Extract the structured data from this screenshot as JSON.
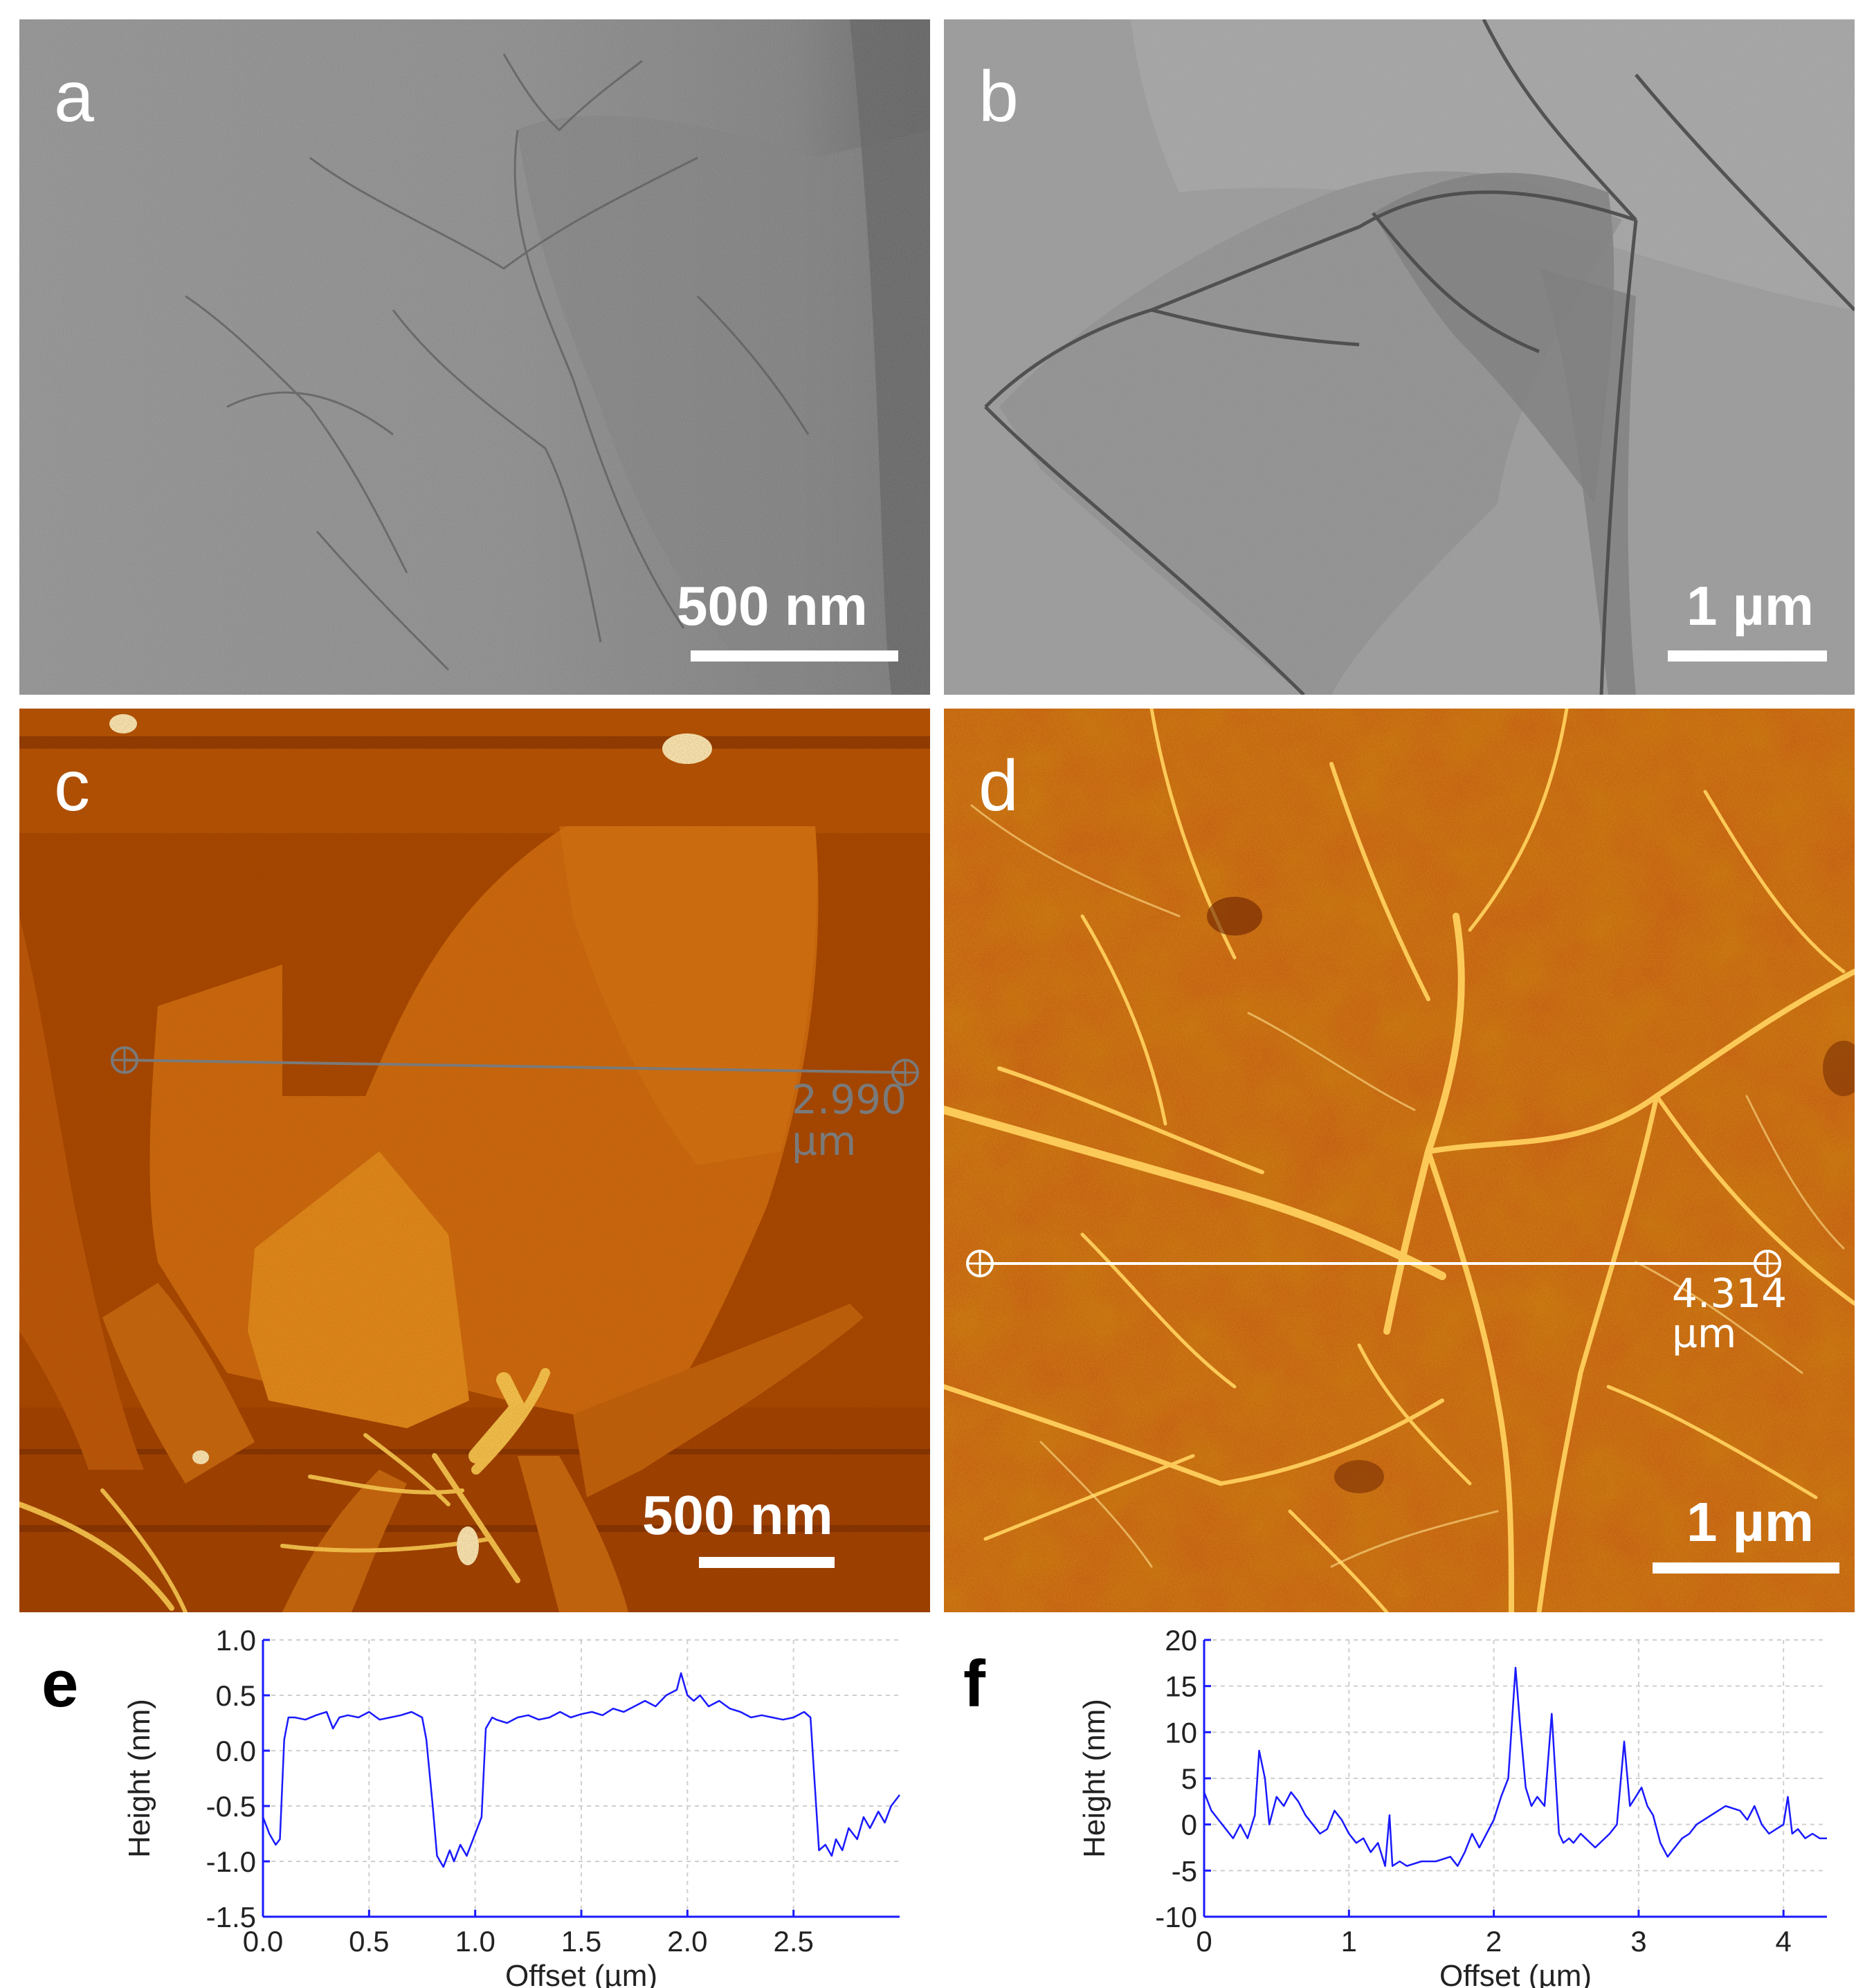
{
  "panels": {
    "a": {
      "letter": "a",
      "scale_label": "500 nm"
    },
    "b": {
      "letter": "b",
      "scale_label": "1 µm"
    },
    "c": {
      "letter": "c",
      "scale_label": "500 nm",
      "measure_value": "2.990",
      "measure_unit": "µm"
    },
    "d": {
      "letter": "d",
      "scale_label": "1 µm",
      "measure_value": "4.314 µm"
    },
    "e": {
      "letter": "e"
    },
    "f": {
      "letter": "f"
    }
  },
  "colors": {
    "afm_dark": "#8f3400",
    "afm_mid": "#c25a0c",
    "afm_light": "#f5a530",
    "tem_gray": "#8c8c8c",
    "profile_line": "#1a1aff"
  },
  "chart_data": [
    {
      "id": "e",
      "type": "line",
      "xlabel": "Offset (µm)",
      "ylabel": "Height (nm)",
      "xlim": [
        0,
        3.0
      ],
      "ylim": [
        -1.5,
        1.0
      ],
      "xticks": [
        0.0,
        0.5,
        1.0,
        1.5,
        2.0,
        2.5
      ],
      "xtick_labels": [
        "0.0",
        "0.5",
        "1.0",
        "1.5",
        "2.0",
        "2.5"
      ],
      "yticks": [
        1.0,
        0.5,
        0.0,
        -0.5,
        -1.0,
        -1.5
      ],
      "ytick_labels": [
        "1.0",
        "0.5",
        "0.0",
        "-0.5",
        "-1.0",
        "-1.5"
      ],
      "grid": true,
      "series": [
        {
          "x": [
            0.0,
            0.03,
            0.06,
            0.08,
            0.1,
            0.12,
            0.15,
            0.2,
            0.25,
            0.3,
            0.33,
            0.36,
            0.4,
            0.45,
            0.5,
            0.55,
            0.6,
            0.65,
            0.7,
            0.75,
            0.77,
            0.8,
            0.82,
            0.85,
            0.88,
            0.9,
            0.93,
            0.96,
            1.0,
            1.03,
            1.05,
            1.08,
            1.1,
            1.15,
            1.2,
            1.25,
            1.3,
            1.35,
            1.4,
            1.45,
            1.5,
            1.55,
            1.6,
            1.65,
            1.7,
            1.75,
            1.8,
            1.85,
            1.9,
            1.95,
            1.97,
            2.0,
            2.03,
            2.06,
            2.1,
            2.15,
            2.2,
            2.25,
            2.3,
            2.35,
            2.4,
            2.45,
            2.5,
            2.55,
            2.58,
            2.6,
            2.62,
            2.65,
            2.68,
            2.7,
            2.73,
            2.76,
            2.8,
            2.83,
            2.86,
            2.9,
            2.93,
            2.96,
            3.0
          ],
          "y": [
            -0.6,
            -0.75,
            -0.85,
            -0.8,
            0.1,
            0.3,
            0.3,
            0.28,
            0.32,
            0.35,
            0.2,
            0.3,
            0.32,
            0.3,
            0.35,
            0.28,
            0.3,
            0.32,
            0.35,
            0.3,
            0.1,
            -0.5,
            -0.95,
            -1.05,
            -0.9,
            -1.0,
            -0.85,
            -0.95,
            -0.75,
            -0.6,
            0.2,
            0.3,
            0.28,
            0.25,
            0.3,
            0.32,
            0.28,
            0.3,
            0.35,
            0.3,
            0.33,
            0.35,
            0.32,
            0.38,
            0.35,
            0.4,
            0.45,
            0.4,
            0.5,
            0.55,
            0.7,
            0.5,
            0.45,
            0.5,
            0.4,
            0.45,
            0.38,
            0.35,
            0.3,
            0.32,
            0.3,
            0.28,
            0.3,
            0.35,
            0.3,
            -0.3,
            -0.9,
            -0.85,
            -0.95,
            -0.8,
            -0.9,
            -0.7,
            -0.8,
            -0.6,
            -0.7,
            -0.55,
            -0.65,
            -0.5,
            -0.4
          ]
        }
      ]
    },
    {
      "id": "f",
      "type": "line",
      "xlabel": "Offset (µm)",
      "ylabel": "Height (nm)",
      "xlim": [
        0,
        4.3
      ],
      "ylim": [
        -10,
        20
      ],
      "xticks": [
        0,
        1,
        2,
        3,
        4
      ],
      "xtick_labels": [
        "0",
        "1",
        "2",
        "3",
        "4"
      ],
      "yticks": [
        20,
        15,
        10,
        5,
        0,
        -5,
        -10
      ],
      "ytick_labels": [
        "20",
        "15",
        "10",
        "5",
        "0",
        "-5",
        "-10"
      ],
      "grid": true,
      "series": [
        {
          "x": [
            0.0,
            0.05,
            0.1,
            0.15,
            0.2,
            0.25,
            0.3,
            0.35,
            0.38,
            0.42,
            0.45,
            0.5,
            0.55,
            0.6,
            0.65,
            0.7,
            0.75,
            0.8,
            0.85,
            0.9,
            0.95,
            1.0,
            1.05,
            1.1,
            1.15,
            1.2,
            1.25,
            1.28,
            1.3,
            1.35,
            1.4,
            1.5,
            1.6,
            1.7,
            1.75,
            1.8,
            1.85,
            1.9,
            1.95,
            2.0,
            2.05,
            2.1,
            2.15,
            2.18,
            2.22,
            2.26,
            2.3,
            2.35,
            2.4,
            2.45,
            2.48,
            2.52,
            2.55,
            2.6,
            2.7,
            2.8,
            2.85,
            2.9,
            2.94,
            2.98,
            3.02,
            3.06,
            3.1,
            3.15,
            3.2,
            3.25,
            3.3,
            3.35,
            3.4,
            3.5,
            3.6,
            3.7,
            3.75,
            3.8,
            3.85,
            3.9,
            3.95,
            4.0,
            4.03,
            4.06,
            4.1,
            4.15,
            4.2,
            4.25,
            4.3
          ],
          "y": [
            3.5,
            1.5,
            0.5,
            -0.5,
            -1.5,
            0.0,
            -1.5,
            1.0,
            8.0,
            5.0,
            0.0,
            3.0,
            2.0,
            3.5,
            2.5,
            1.0,
            0.0,
            -1.0,
            -0.5,
            1.5,
            0.5,
            -1.0,
            -2.0,
            -1.5,
            -3.0,
            -2.0,
            -4.5,
            1.0,
            -4.5,
            -4.0,
            -4.5,
            -4.0,
            -4.0,
            -3.5,
            -4.5,
            -3.0,
            -1.0,
            -2.5,
            -1.0,
            0.5,
            3.0,
            5.0,
            17.0,
            11.0,
            4.0,
            2.0,
            3.0,
            2.0,
            12.0,
            -1.0,
            -2.0,
            -1.5,
            -2.0,
            -1.0,
            -2.5,
            -1.0,
            0.0,
            9.0,
            2.0,
            3.0,
            4.0,
            2.0,
            1.0,
            -2.0,
            -3.5,
            -2.5,
            -1.5,
            -1.0,
            0.0,
            1.0,
            2.0,
            1.5,
            0.5,
            2.0,
            0.0,
            -1.0,
            -0.5,
            0.0,
            3.0,
            -1.0,
            -0.5,
            -1.5,
            -1.0,
            -1.5,
            -1.5
          ]
        }
      ]
    }
  ]
}
